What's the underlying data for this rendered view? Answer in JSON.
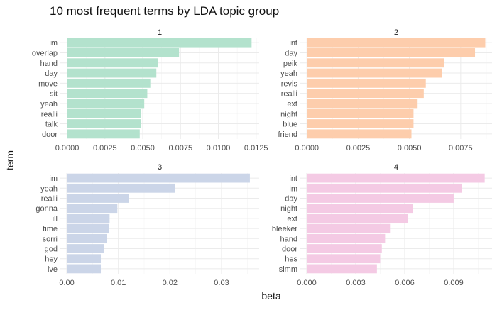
{
  "chart_data": {
    "type": "bar",
    "orientation": "horizontal",
    "title": "10 most frequent terms by LDA topic group",
    "xlabel": "beta",
    "ylabel": "term",
    "grid": true,
    "legend": "none",
    "panels": [
      {
        "label": "1",
        "color": "#b3e2cd",
        "categories": [
          "im",
          "overlap",
          "hand",
          "day",
          "move",
          "sit",
          "yeah",
          "realli",
          "talk",
          "door"
        ],
        "values": [
          0.0122,
          0.0074,
          0.006,
          0.0059,
          0.0055,
          0.0053,
          0.0051,
          0.0049,
          0.0049,
          0.0048
        ],
        "xlim": [
          -0.00045,
          0.0127
        ],
        "ticks": [
          0,
          0.0025,
          0.005,
          0.0075,
          0.01,
          0.0125
        ],
        "tick_labels": [
          "0.0000",
          "0.0025",
          "0.0050",
          "0.0075",
          "0.0100",
          "0.0125"
        ]
      },
      {
        "label": "2",
        "color": "#fdcdac",
        "categories": [
          "int",
          "day",
          "peik",
          "yeah",
          "revis",
          "realli",
          "ext",
          "night",
          "blue",
          "friend"
        ],
        "values": [
          0.0087,
          0.0082,
          0.0067,
          0.0066,
          0.0058,
          0.0057,
          0.0054,
          0.0052,
          0.0052,
          0.0051
        ],
        "xlim": [
          -0.00032,
          0.00903
        ],
        "ticks": [
          0,
          0.0025,
          0.005,
          0.0075
        ],
        "tick_labels": [
          "0.0000",
          "0.0025",
          "0.0050",
          "0.0075"
        ]
      },
      {
        "label": "3",
        "color": "#cbd5e8",
        "categories": [
          "im",
          "yeah",
          "realli",
          "gonna",
          "ill",
          "time",
          "sorri",
          "god",
          "hey",
          "ive"
        ],
        "values": [
          0.0355,
          0.021,
          0.012,
          0.0098,
          0.0083,
          0.0082,
          0.0078,
          0.0072,
          0.0066,
          0.0066
        ],
        "xlim": [
          -0.00125,
          0.0373
        ],
        "ticks": [
          0,
          0.01,
          0.02,
          0.03
        ],
        "tick_labels": [
          "0.00",
          "0.01",
          "0.02",
          "0.03"
        ]
      },
      {
        "label": "4",
        "color": "#f4cae4",
        "categories": [
          "int",
          "im",
          "day",
          "night",
          "ext",
          "bleeker",
          "hand",
          "door",
          "hes",
          "simm"
        ],
        "values": [
          0.0109,
          0.0095,
          0.009,
          0.0065,
          0.0062,
          0.0051,
          0.0048,
          0.0046,
          0.0045,
          0.0043
        ],
        "xlim": [
          -0.00039,
          0.01135
        ],
        "ticks": [
          0,
          0.003,
          0.006,
          0.009
        ],
        "tick_labels": [
          "0.000",
          "0.003",
          "0.006",
          "0.009"
        ]
      }
    ]
  }
}
